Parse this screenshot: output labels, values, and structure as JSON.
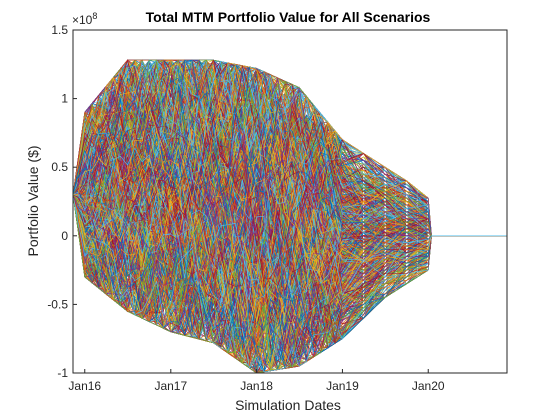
{
  "chart_data": {
    "type": "line",
    "title": "Total MTM Portfolio Value for All Scenarios",
    "xlabel": "Simulation Dates",
    "ylabel": "Portfolio Value ($)",
    "y_exponent_label": "×10",
    "y_exponent_power": "8",
    "x_tick_labels": [
      "Jan16",
      "Jan17",
      "Jan18",
      "Jan19",
      "Jan20"
    ],
    "x_tick_dates": [
      "2016-01-01",
      "2017-01-01",
      "2018-01-01",
      "2019-01-01",
      "2020-01-01"
    ],
    "xlim": [
      "2015-11-12",
      "2020-12-01"
    ],
    "y_tick_labels": [
      "-1",
      "-0.5",
      "0",
      "0.5",
      "1",
      "1.5"
    ],
    "y_tick_values": [
      -100000000,
      -50000000,
      0,
      50000000,
      100000000,
      150000000
    ],
    "ylim": [
      -100000000,
      150000000
    ],
    "grid": false,
    "legend": "none",
    "start_value": 30000000,
    "end_value": 0,
    "maturity_dates": [
      "2016-01-01",
      "2017-01-01",
      "2018-01-01",
      "2019-01-01",
      "2020-01-01"
    ],
    "scenario_count": 1000,
    "simulated_monthly_until": "2019-01-01",
    "simulated_quarterly_until": "2020-01-01",
    "envelope_by_date": [
      {
        "date": "2015-11-12",
        "low": 30000000,
        "high": 30000000
      },
      {
        "date": "2016-01-01",
        "low": -30000000,
        "high": 90000000
      },
      {
        "date": "2016-07-01",
        "low": -55000000,
        "high": 128000000
      },
      {
        "date": "2017-01-01",
        "low": -70000000,
        "high": 128000000
      },
      {
        "date": "2017-07-01",
        "low": -78000000,
        "high": 128000000
      },
      {
        "date": "2018-01-01",
        "low": -100000000,
        "high": 122000000
      },
      {
        "date": "2018-07-01",
        "low": -95000000,
        "high": 108000000
      },
      {
        "date": "2019-01-01",
        "low": -75000000,
        "high": 70000000
      },
      {
        "date": "2019-07-01",
        "low": -45000000,
        "high": 50000000
      },
      {
        "date": "2020-01-01",
        "low": -25000000,
        "high": 28000000
      },
      {
        "date": "2020-01-15",
        "low": 0,
        "high": 0
      },
      {
        "date": "2020-12-01",
        "low": 0,
        "high": 0
      }
    ],
    "colors": [
      "#0072BD",
      "#D95319",
      "#EDB120",
      "#7E2F8E",
      "#77AC30",
      "#4DBEEE",
      "#A2142F"
    ]
  }
}
